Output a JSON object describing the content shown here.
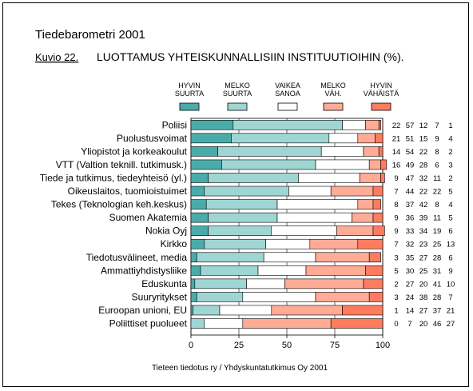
{
  "header": {
    "title": "Tiedebarometri 2001",
    "figure_label": "Kuvio 22.",
    "figure_title": "LUOTTAMUS YHTEISKUNNALLISIIN INSTITUUTIOIHIN (%)."
  },
  "footer": {
    "source": "Tieteen tiedotus ry / Yhdyskuntatutkimus Oy 2001"
  },
  "chart_data": {
    "type": "bar",
    "orientation": "horizontal",
    "stacked": true,
    "title": "LUOTTAMUS YHTEISKUNNALLISIIN INSTITUUTIOIHIN (%).",
    "xlim": [
      0,
      100
    ],
    "x_ticks": [
      0,
      25,
      50,
      75,
      100
    ],
    "legend_placement": "top",
    "categories": [
      "Poliisi",
      "Puolustusvoimat",
      "Yliopistot ja korkeakoulut",
      "VTT (Valtion teknill. tutkimusk.)",
      "Tiede ja tutkimus, tiedeyhteisö (yl.)",
      "Oikeuslaitos, tuomioistuimet",
      "Tekes (Teknologian keh.keskus)",
      "Suomen Akatemia",
      "Nokia Oyj",
      "Kirkko",
      "Tiedotusvälineet, media",
      "Ammattiyhdistysliike",
      "Eduskunta",
      "Suuryritykset",
      "Euroopan unioni, EU",
      "Poliittiset puolueet"
    ],
    "series": [
      {
        "name": "HYVIN SUURTA",
        "name_lines": [
          "HYVIN",
          "SUURTA"
        ],
        "color": "#4aacaa",
        "values": [
          22,
          21,
          14,
          16,
          9,
          7,
          8,
          9,
          9,
          7,
          3,
          5,
          2,
          3,
          1,
          0
        ]
      },
      {
        "name": "MELKO SUURTA",
        "name_lines": [
          "MELKO",
          "SUURTA"
        ],
        "color": "#9fd6d3",
        "values": [
          57,
          51,
          54,
          49,
          47,
          44,
          37,
          36,
          33,
          32,
          35,
          30,
          27,
          24,
          14,
          7
        ]
      },
      {
        "name": "VAIKEA SANOA",
        "name_lines": [
          "VAIKEA",
          "SANOA"
        ],
        "color": "#ffffff",
        "values": [
          12,
          15,
          22,
          28,
          32,
          22,
          42,
          39,
          34,
          23,
          27,
          25,
          20,
          38,
          27,
          20
        ]
      },
      {
        "name": "MELKO VÄH.",
        "name_lines": [
          "MELKO",
          "VÄH."
        ],
        "color": "#ffab96",
        "values": [
          7,
          9,
          8,
          6,
          11,
          22,
          8,
          11,
          19,
          25,
          28,
          31,
          41,
          28,
          37,
          46
        ]
      },
      {
        "name": "HYVIN VÄHÄISTÄ",
        "name_lines": [
          "HYVIN",
          "VÄHÄISTÄ"
        ],
        "color": "#ff7b5e",
        "values": [
          1,
          4,
          2,
          3,
          2,
          5,
          4,
          5,
          6,
          13,
          6,
          9,
          10,
          7,
          21,
          27
        ]
      }
    ]
  }
}
